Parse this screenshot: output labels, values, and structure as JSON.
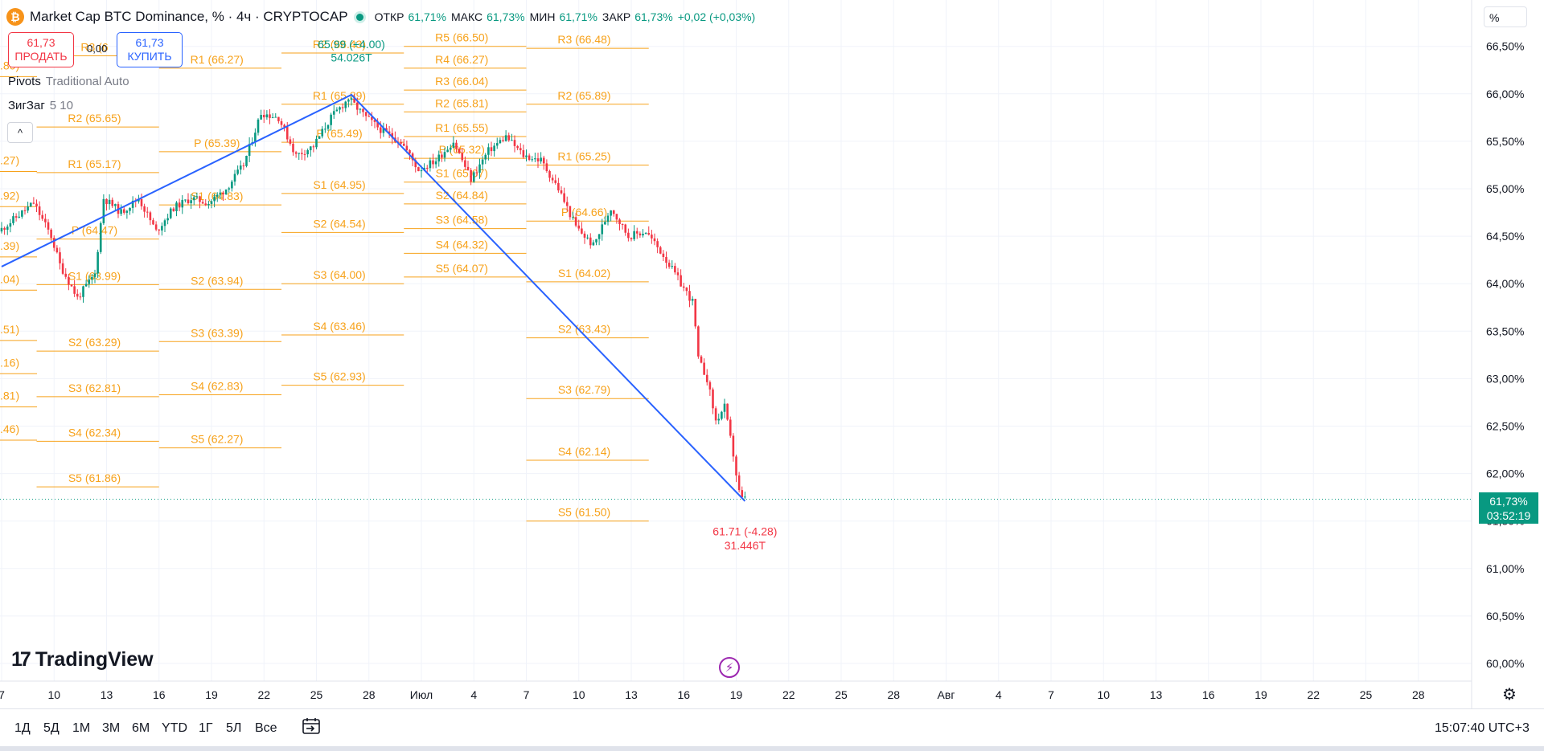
{
  "header": {
    "symbol_icon": "bitcoin-icon",
    "title": "Market Cap BTC Dominance, % · 4ч · CRYPTOCAP",
    "ohlc": [
      {
        "label": "ОТКР",
        "value": "61,71%"
      },
      {
        "label": "МАКС",
        "value": "61,73%"
      },
      {
        "label": "МИН",
        "value": "61,71%"
      },
      {
        "label": "ЗАКР",
        "value": "61,73%"
      }
    ],
    "change": "+0,02 (+0,03%)"
  },
  "trade": {
    "sell_price": "61,73",
    "sell_label": "ПРОДАТЬ",
    "spread": "0,00",
    "buy_price": "61,73",
    "buy_label": "КУПИТЬ"
  },
  "indicators": [
    {
      "name": "Pivots",
      "args": "Traditional Auto"
    },
    {
      "name": "ЗигЗаг",
      "args": "5 10"
    }
  ],
  "scale": {
    "unit": "%"
  },
  "current_price": {
    "value": "61,73%",
    "countdown": "03:52:19"
  },
  "timeframes": [
    "1Д",
    "5Д",
    "1М",
    "3М",
    "6М",
    "YTD",
    "1Г",
    "5Л",
    "Все"
  ],
  "clock": "15:07:40 UTC+3",
  "brand": "TradingView",
  "colors": {
    "up": "#089981",
    "down": "#f23645",
    "pivot": "#f7a21b",
    "zigzag": "#2962ff",
    "grid": "#f0f3fa"
  },
  "chart_data": {
    "type": "candlestick",
    "y_unit": "%",
    "ylim": [
      59.9,
      66.8
    ],
    "y_ticks": [
      "66,50%",
      "66,00%",
      "65,50%",
      "65,00%",
      "64,50%",
      "64,00%",
      "63,50%",
      "63,00%",
      "62,50%",
      "62,00%",
      "61,50%",
      "61,00%",
      "60,50%",
      "60,00%"
    ],
    "y_tick_values": [
      66.5,
      66.0,
      65.5,
      65.0,
      64.5,
      64.0,
      63.5,
      63.0,
      62.5,
      62.0,
      61.5,
      61.0,
      60.5,
      60.0
    ],
    "x_domain": [
      7,
      53
    ],
    "x_ticks": [
      {
        "label": "7",
        "day": 7
      },
      {
        "label": "10",
        "day": 10
      },
      {
        "label": "13",
        "day": 13
      },
      {
        "label": "16",
        "day": 16
      },
      {
        "label": "19",
        "day": 19
      },
      {
        "label": "22",
        "day": 22
      },
      {
        "label": "25",
        "day": 25
      },
      {
        "label": "28",
        "day": 28
      },
      {
        "label": "Июл",
        "day": 31
      },
      {
        "label": "4",
        "day": 34
      },
      {
        "label": "7",
        "day": 37
      },
      {
        "label": "10",
        "day": 40
      },
      {
        "label": "13",
        "day": 43
      },
      {
        "label": "16",
        "day": 46
      },
      {
        "label": "19",
        "day": 49
      },
      {
        "label": "22",
        "day": 52
      },
      {
        "label": "25",
        "day": 55
      },
      {
        "label": "28",
        "day": 58
      },
      {
        "label": "Авг",
        "day": 61
      },
      {
        "label": "4",
        "day": 64
      },
      {
        "label": "7",
        "day": 67
      },
      {
        "label": "10",
        "day": 70
      },
      {
        "label": "13",
        "day": 73
      },
      {
        "label": "16",
        "day": 76
      },
      {
        "label": "19",
        "day": 79
      },
      {
        "label": "22",
        "day": 82
      },
      {
        "label": "25",
        "day": 85
      },
      {
        "label": "28",
        "day": 88
      }
    ],
    "price_path": [
      [
        7,
        64.55
      ],
      [
        8,
        64.7
      ],
      [
        9,
        64.85
      ],
      [
        10,
        64.5
      ],
      [
        10.5,
        64.2
      ],
      [
        11.5,
        63.85
      ],
      [
        12.5,
        64.1
      ],
      [
        13,
        64.9
      ],
      [
        14,
        64.75
      ],
      [
        15,
        64.9
      ],
      [
        16,
        64.55
      ],
      [
        17,
        64.8
      ],
      [
        18,
        64.9
      ],
      [
        19,
        64.85
      ],
      [
        20,
        65.0
      ],
      [
        21,
        65.25
      ],
      [
        22,
        65.8
      ],
      [
        23,
        65.75
      ],
      [
        24,
        65.35
      ],
      [
        25,
        65.45
      ],
      [
        26,
        65.75
      ],
      [
        27,
        65.95
      ],
      [
        28,
        65.75
      ],
      [
        29,
        65.6
      ],
      [
        30,
        65.5
      ],
      [
        31,
        65.2
      ],
      [
        32,
        65.3
      ],
      [
        33,
        65.5
      ],
      [
        34,
        65.1
      ],
      [
        35,
        65.4
      ],
      [
        36,
        65.55
      ],
      [
        37,
        65.35
      ],
      [
        38,
        65.3
      ],
      [
        39,
        65.0
      ],
      [
        40,
        64.6
      ],
      [
        41,
        64.4
      ],
      [
        42,
        64.8
      ],
      [
        43,
        64.5
      ],
      [
        44,
        64.55
      ],
      [
        45,
        64.3
      ],
      [
        46,
        64.0
      ],
      [
        46.7,
        63.8
      ],
      [
        47,
        63.2
      ],
      [
        47.5,
        63.0
      ],
      [
        48,
        62.55
      ],
      [
        48.5,
        62.7
      ],
      [
        49,
        62.2
      ],
      [
        49.3,
        61.82
      ],
      [
        49.5,
        61.73
      ]
    ],
    "zigzag": {
      "points": [
        [
          7,
          64.18
        ],
        [
          27,
          65.99
        ],
        [
          49.5,
          61.71
        ]
      ],
      "labels": [
        {
          "text": "65.99 (+4.00)",
          "x": 27,
          "y": 66.48
        },
        {
          "text": "54.026T",
          "x": 27,
          "y": 66.34
        },
        {
          "text": "61.71 (-4.28)",
          "x": 49.5,
          "y": 61.35
        },
        {
          "text": "31.446T",
          "x": 49.5,
          "y": 61.2
        }
      ]
    },
    "pivot_sets": [
      {
        "x": [
          9,
          16
        ],
        "levels": [
          {
            "label": "R3 (6",
            "value": 66.4
          },
          {
            "label": "R2 (65.65)",
            "value": 65.65
          },
          {
            "label": "R1 (65.17)",
            "value": 65.17
          },
          {
            "label": "P (64.47)",
            "value": 64.47
          },
          {
            "label": "S1 (63.99)",
            "value": 63.99
          },
          {
            "label": "S2 (63.29)",
            "value": 63.29
          },
          {
            "label": "S3 (62.81)",
            "value": 62.81
          },
          {
            "label": "S4 (62.34)",
            "value": 62.34
          },
          {
            "label": "S5 (61.86)",
            "value": 61.86
          }
        ]
      },
      {
        "x": [
          16,
          23
        ],
        "levels": [
          {
            "label": "R1 (66.27)",
            "value": 66.27
          },
          {
            "label": "P (65.39)",
            "value": 65.39
          },
          {
            "label": "S1 (64.83)",
            "value": 64.83
          },
          {
            "label": "S2 (63.94)",
            "value": 63.94
          },
          {
            "label": "S3 (63.39)",
            "value": 63.39
          },
          {
            "label": "S4 (62.83)",
            "value": 62.83
          },
          {
            "label": "S5 (62.27)",
            "value": 62.27
          }
        ]
      },
      {
        "x": [
          23,
          30
        ],
        "levels": [
          {
            "label": "R2 (66.43)",
            "value": 66.43
          },
          {
            "label": "R1 (65.89)",
            "value": 65.89
          },
          {
            "label": "P (65.49)",
            "value": 65.49
          },
          {
            "label": "S1 (64.95)",
            "value": 64.95
          },
          {
            "label": "S2 (64.54)",
            "value": 64.54
          },
          {
            "label": "S3 (64.00)",
            "value": 64.0
          },
          {
            "label": "S4 (63.46)",
            "value": 63.46
          },
          {
            "label": "S5 (62.93)",
            "value": 62.93
          }
        ]
      },
      {
        "x": [
          30,
          37
        ],
        "levels": [
          {
            "label": "R5 (66.50)",
            "value": 66.5
          },
          {
            "label": "R4 (66.27)",
            "value": 66.27
          },
          {
            "label": "R3 (66.04)",
            "value": 66.04
          },
          {
            "label": "R2 (65.81)",
            "value": 65.81
          },
          {
            "label": "R1 (65.55)",
            "value": 65.55
          },
          {
            "label": "P (65.32)",
            "value": 65.32
          },
          {
            "label": "S1 (65.07)",
            "value": 65.07
          },
          {
            "label": "S2 (64.84)",
            "value": 64.84
          },
          {
            "label": "S3 (64.58)",
            "value": 64.58
          },
          {
            "label": "S4 (64.32)",
            "value": 64.32
          },
          {
            "label": "S5 (64.07)",
            "value": 64.07
          }
        ]
      },
      {
        "x": [
          37,
          44
        ],
        "levels": [
          {
            "label": "R3 (66.48)",
            "value": 66.48
          },
          {
            "label": "R2 (65.89)",
            "value": 65.89
          },
          {
            "label": "R1 (65.25)",
            "value": 65.25
          },
          {
            "label": "P (64.66)",
            "value": 64.66
          },
          {
            "label": "S1 (64.02)",
            "value": 64.02
          },
          {
            "label": "S2 (63.43)",
            "value": 63.43
          },
          {
            "label": "S3 (62.79)",
            "value": 62.79
          },
          {
            "label": "S4 (62.14)",
            "value": 62.14
          },
          {
            "label": "S5 (61.50)",
            "value": 61.5
          }
        ]
      }
    ],
    "edge_labels": [
      ".80)",
      ".27)",
      ".92)",
      ".39)",
      ".04)",
      ".51)",
      ".16)",
      ".81)",
      ".46)"
    ],
    "edge_label_values": [
      66.3,
      65.3,
      64.93,
      64.4,
      64.05,
      63.52,
      63.17,
      62.82,
      62.47
    ]
  }
}
